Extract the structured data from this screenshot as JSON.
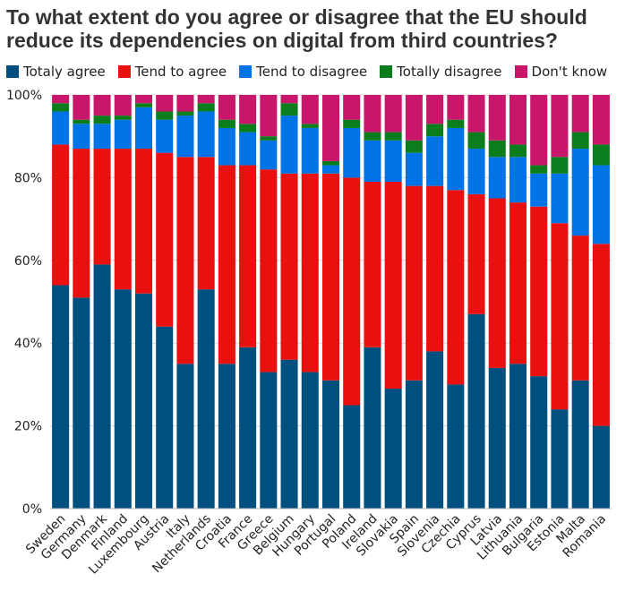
{
  "chart_data": {
    "type": "bar",
    "stacked": true,
    "title": "To what extent do you agree or disagree that the EU should reduce its dependencies on digital from third countries?",
    "legend_placement": "top",
    "grid": true,
    "ylim": [
      0,
      100
    ],
    "yticks": [
      "0%",
      "20%",
      "40%",
      "60%",
      "80%",
      "100%"
    ],
    "categories": [
      "Sweden",
      "Germany",
      "Denmark",
      "Finland",
      "Luxembourg",
      "Austria",
      "Italy",
      "Netherlands",
      "Croatia",
      "France",
      "Greece",
      "Belgium",
      "Hungary",
      "Portugal",
      "Poland",
      "Ireland",
      "Slovakia",
      "Spain",
      "Slovenia",
      "Czechia",
      "Cyprus",
      "Latvia",
      "Lithuania",
      "Bulgaria",
      "Estonia",
      "Malta",
      "Romania"
    ],
    "series": [
      {
        "name": "Totaly agree",
        "color": "#00507f",
        "values": [
          54,
          51,
          59,
          53,
          52,
          44,
          35,
          53,
          35,
          39,
          33,
          36,
          33,
          31,
          25,
          39,
          29,
          31,
          38,
          30,
          47,
          34,
          35,
          32,
          24,
          31,
          20
        ]
      },
      {
        "name": "Tend to agree",
        "color": "#e8110f",
        "values": [
          34,
          36,
          28,
          34,
          35,
          42,
          50,
          32,
          48,
          44,
          49,
          45,
          48,
          50,
          55,
          40,
          50,
          47,
          40,
          47,
          29,
          41,
          39,
          41,
          45,
          35,
          44
        ]
      },
      {
        "name": "Tend to disagree",
        "color": "#0073e6",
        "values": [
          8,
          6,
          6,
          7,
          10,
          8,
          10,
          11,
          9,
          8,
          7,
          14,
          11,
          2,
          12,
          10,
          10,
          8,
          12,
          15,
          11,
          10,
          11,
          8,
          12,
          21,
          19
        ]
      },
      {
        "name": "Totally disagree",
        "color": "#0b7d1c",
        "values": [
          2,
          1,
          2,
          1,
          1,
          2,
          1,
          2,
          2,
          2,
          1,
          3,
          1,
          1,
          2,
          2,
          2,
          3,
          3,
          2,
          4,
          4,
          3,
          2,
          4,
          4,
          5
        ]
      },
      {
        "name": "Don't know",
        "color": "#c8176b",
        "values": [
          2,
          6,
          5,
          5,
          2,
          4,
          4,
          2,
          6,
          7,
          10,
          2,
          7,
          16,
          6,
          9,
          9,
          11,
          7,
          6,
          9,
          11,
          12,
          17,
          15,
          9,
          12
        ]
      }
    ]
  }
}
